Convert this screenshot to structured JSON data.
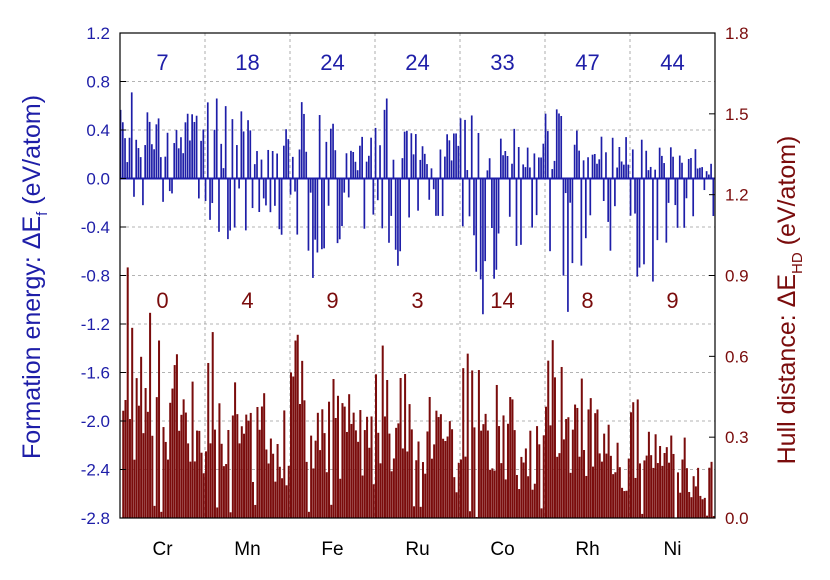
{
  "chart_data": {
    "type": "bar",
    "left_axis": {
      "label_main": "Formation energy: ΔE",
      "label_sub": "f",
      "label_unit": " (eV/atom)",
      "color": "#1e1ea8",
      "ylim": [
        -2.8,
        1.2
      ],
      "ticks": [
        "1.2",
        "0.8",
        "0.4",
        "0.0",
        "-0.4",
        "-0.8",
        "-1.2",
        "-1.6",
        "-2.0",
        "-2.4",
        "-2.8"
      ]
    },
    "right_axis": {
      "label_main": "Hull distance: ΔE",
      "label_sub": "HD",
      "label_unit": " (eV/atom)",
      "color": "#7a0c0c",
      "ylim": [
        0.0,
        1.8
      ],
      "ticks": [
        "1.8",
        "1.5",
        "1.2",
        "0.9",
        "0.6",
        "0.3",
        "0.0"
      ]
    },
    "categories": [
      "Cr",
      "Mn",
      "Fe",
      "Ru",
      "Co",
      "Rh",
      "Ni"
    ],
    "top_counts": [
      "7",
      "18",
      "24",
      "24",
      "33",
      "47",
      "44"
    ],
    "bottom_counts": [
      "0",
      "4",
      "9",
      "3",
      "14",
      "8",
      "9"
    ],
    "grid": true,
    "series": [
      {
        "axis": "left",
        "color": "#1e1ea8",
        "group_peaks": [
          {
            "pos": 0.71,
            "neg": -0.22
          },
          {
            "pos": 0.66,
            "neg": -0.5
          },
          {
            "pos": 0.63,
            "neg": -0.82
          },
          {
            "pos": 0.66,
            "neg": -0.72
          },
          {
            "pos": 0.52,
            "neg": -1.12
          },
          {
            "pos": 0.57,
            "neg": -1.1
          },
          {
            "pos": 0.32,
            "neg": -0.85
          }
        ]
      },
      {
        "axis": "right",
        "color": "#7a0c0c",
        "group_peaks": [
          {
            "max": 0.93
          },
          {
            "max": 0.69
          },
          {
            "max": 0.68
          },
          {
            "max": 0.64
          },
          {
            "max": 0.61
          },
          {
            "max": 0.66
          },
          {
            "max": 0.44
          }
        ]
      }
    ]
  }
}
